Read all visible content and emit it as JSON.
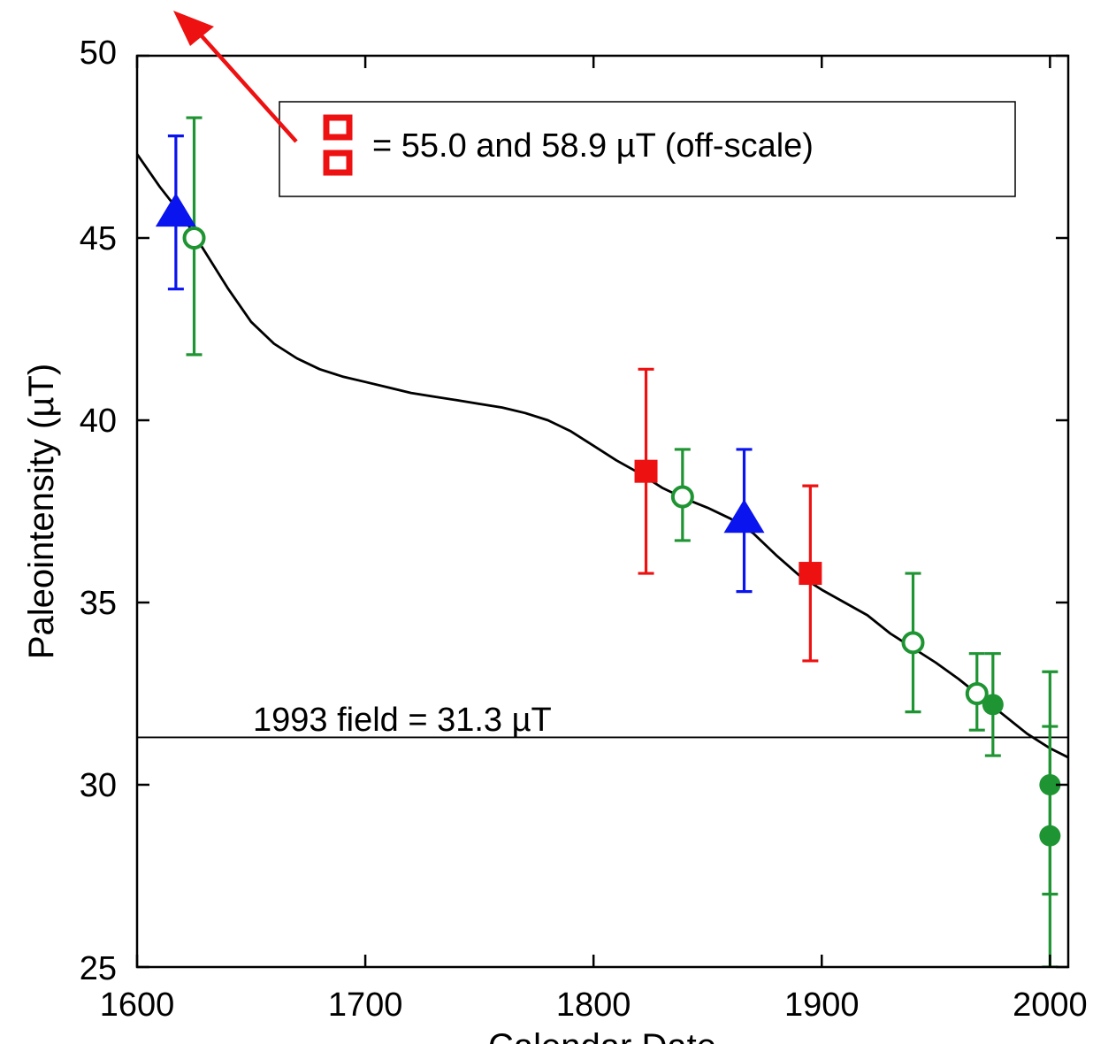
{
  "chart_data": {
    "type": "scatter",
    "title": "",
    "xlabel": "Calendar Date",
    "ylabel": "Paleointensity (µT)",
    "xlim": [
      1600,
      2008
    ],
    "ylim": [
      25,
      50
    ],
    "x_ticks": [
      1600,
      1700,
      1800,
      1900,
      2000
    ],
    "y_ticks": [
      25,
      30,
      35,
      40,
      45,
      50
    ],
    "x_tick_labels": [
      "1600",
      "1700",
      "1800",
      "1900",
      "2000"
    ],
    "y_tick_labels": [
      "25",
      "30",
      "35",
      "40",
      "45",
      "50"
    ],
    "grid": false,
    "reference_line": {
      "y": 31.3,
      "label": "1993 field = 31.3 µT"
    },
    "legend": {
      "text": "= 55.0 and 58.9 µT (off-scale)",
      "placement": "top",
      "marker": "open-square",
      "marker_color": "#ee1111",
      "arrow_color": "#ee1111"
    },
    "model_curve": {
      "color": "#000000",
      "points": [
        [
          1600,
          47.3
        ],
        [
          1610,
          46.4
        ],
        [
          1620,
          45.6
        ],
        [
          1630,
          44.6
        ],
        [
          1640,
          43.6
        ],
        [
          1650,
          42.7
        ],
        [
          1660,
          42.1
        ],
        [
          1670,
          41.7
        ],
        [
          1680,
          41.4
        ],
        [
          1690,
          41.2
        ],
        [
          1700,
          41.05
        ],
        [
          1710,
          40.9
        ],
        [
          1720,
          40.75
        ],
        [
          1730,
          40.65
        ],
        [
          1740,
          40.55
        ],
        [
          1750,
          40.45
        ],
        [
          1760,
          40.35
        ],
        [
          1770,
          40.2
        ],
        [
          1780,
          40.0
        ],
        [
          1790,
          39.7
        ],
        [
          1800,
          39.3
        ],
        [
          1810,
          38.9
        ],
        [
          1820,
          38.55
        ],
        [
          1830,
          38.15
        ],
        [
          1840,
          37.85
        ],
        [
          1850,
          37.6
        ],
        [
          1860,
          37.3
        ],
        [
          1870,
          36.9
        ],
        [
          1880,
          36.3
        ],
        [
          1890,
          35.75
        ],
        [
          1900,
          35.35
        ],
        [
          1910,
          35.0
        ],
        [
          1920,
          34.65
        ],
        [
          1930,
          34.15
        ],
        [
          1940,
          33.75
        ],
        [
          1950,
          33.35
        ],
        [
          1960,
          32.9
        ],
        [
          1970,
          32.4
        ],
        [
          1980,
          31.9
        ],
        [
          1990,
          31.4
        ],
        [
          2000,
          31.0
        ],
        [
          2008,
          30.75
        ]
      ]
    },
    "series": [
      {
        "marker": "filled-triangle",
        "color": "#0a14ee",
        "points": [
          {
            "x": 1617,
            "y": 45.7,
            "err_low": 43.6,
            "err_high": 47.8
          },
          {
            "x": 1866,
            "y": 37.3,
            "err_low": 35.3,
            "err_high": 39.2
          }
        ]
      },
      {
        "marker": "filled-square",
        "color": "#ee1111",
        "points": [
          {
            "x": 1823,
            "y": 38.6,
            "err_low": 35.8,
            "err_high": 41.4
          },
          {
            "x": 1895,
            "y": 35.8,
            "err_low": 33.4,
            "err_high": 38.2
          }
        ]
      },
      {
        "marker": "open-circle",
        "color": "#1e9432",
        "points": [
          {
            "x": 1625,
            "y": 45.0,
            "err_low": 41.8,
            "err_high": 48.3
          },
          {
            "x": 1839,
            "y": 37.9,
            "err_low": 36.7,
            "err_high": 39.2
          },
          {
            "x": 1940,
            "y": 33.9,
            "err_low": 32.0,
            "err_high": 35.8
          },
          {
            "x": 1968,
            "y": 32.5,
            "err_low": 31.5,
            "err_high": 33.6
          }
        ]
      },
      {
        "marker": "filled-circle",
        "color": "#1e9432",
        "points": [
          {
            "x": 1975,
            "y": 32.2,
            "err_low": 30.8,
            "err_high": 33.6
          },
          {
            "x": 2000,
            "y": 30.0,
            "err_low": 27.0,
            "err_high": 33.1
          },
          {
            "x": 2000,
            "y": 28.6,
            "err_low": 25.0,
            "err_high": 31.6
          }
        ]
      }
    ]
  }
}
